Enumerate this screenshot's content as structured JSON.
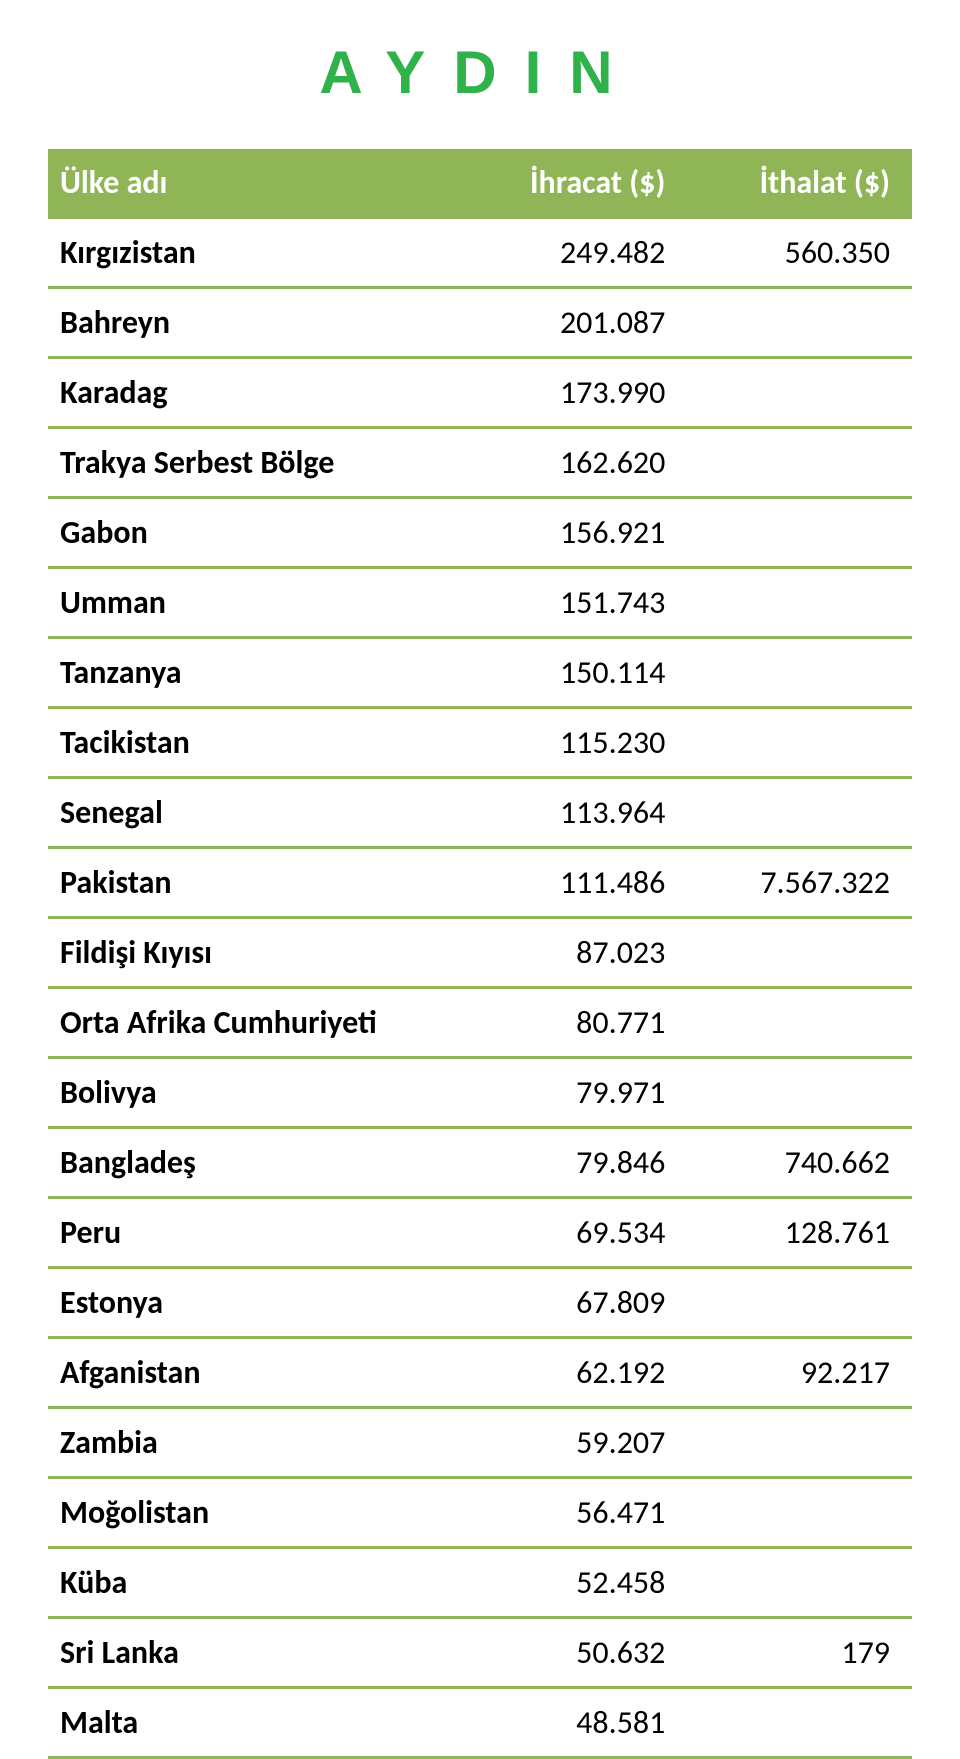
{
  "logo": {
    "text": "AYDIN",
    "color": "#2fb24a"
  },
  "table": {
    "header_bg": "#8fb557",
    "header_fg": "#ffffff",
    "row_border_color": "#8fb557",
    "columns": [
      {
        "label": "Ülke adı",
        "align": "left"
      },
      {
        "label": "İhracat ($)",
        "align": "right"
      },
      {
        "label": "İthalat ($)",
        "align": "right"
      }
    ],
    "rows": [
      {
        "country": "Kırgızistan",
        "export": "249.482",
        "import": "560.350"
      },
      {
        "country": "Bahreyn",
        "export": "201.087",
        "import": ""
      },
      {
        "country": "Karadag",
        "export": "173.990",
        "import": ""
      },
      {
        "country": "Trakya Serbest Bölge",
        "export": "162.620",
        "import": ""
      },
      {
        "country": "Gabon",
        "export": "156.921",
        "import": ""
      },
      {
        "country": "Umman",
        "export": "151.743",
        "import": ""
      },
      {
        "country": "Tanzanya",
        "export": "150.114",
        "import": ""
      },
      {
        "country": "Tacikistan",
        "export": "115.230",
        "import": ""
      },
      {
        "country": "Senegal",
        "export": "113.964",
        "import": ""
      },
      {
        "country": "Pakistan",
        "export": "111.486",
        "import": "7.567.322"
      },
      {
        "country": "Fildişi Kıyısı",
        "export": "87.023",
        "import": ""
      },
      {
        "country": "Orta Afrika Cumhuriyeti",
        "export": "80.771",
        "import": ""
      },
      {
        "country": "Bolivya",
        "export": "79.971",
        "import": ""
      },
      {
        "country": "Bangladeş",
        "export": "79.846",
        "import": "740.662"
      },
      {
        "country": "Peru",
        "export": "69.534",
        "import": "128.761"
      },
      {
        "country": "Estonya",
        "export": "67.809",
        "import": ""
      },
      {
        "country": "Afganistan",
        "export": "62.192",
        "import": "92.217"
      },
      {
        "country": "Zambia",
        "export": "59.207",
        "import": ""
      },
      {
        "country": "Moğolistan",
        "export": "56.471",
        "import": ""
      },
      {
        "country": "Küba",
        "export": "52.458",
        "import": ""
      },
      {
        "country": "Sri Lanka",
        "export": "50.632",
        "import": "179"
      },
      {
        "country": "Malta",
        "export": "48.581",
        "import": ""
      }
    ]
  }
}
